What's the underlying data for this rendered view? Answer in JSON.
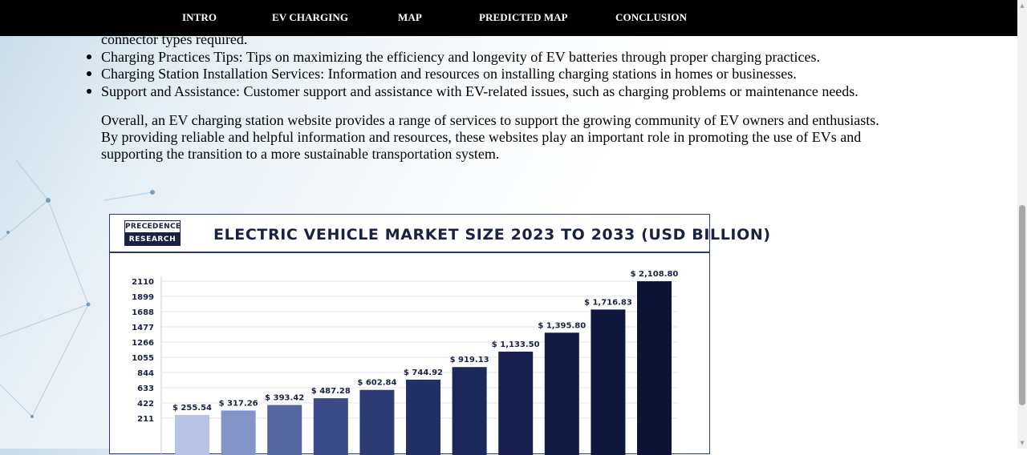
{
  "nav": {
    "items": [
      "INTRO",
      "EV CHARGING",
      "MAP",
      "PREDICTED MAP",
      "CONCLUSION"
    ]
  },
  "content": {
    "partial_line": "connector types required.",
    "bullets": [
      "Charging Practices Tips: Tips on maximizing the efficiency and longevity of EV batteries through proper charging practices.",
      "Charging Station Installation Services: Information and resources on installing charging stations in homes or businesses.",
      "Support and Assistance: Customer support and assistance with EV-related issues, such as charging problems or maintenance needs."
    ],
    "paragraph_lines": [
      "Overall, an EV charging station website provides a range of services to support the growing community of EV owners and enthusiasts.",
      "By providing reliable and helpful information and resources, these websites play an important role in promoting the use of EVs and",
      "supporting the transition to a more sustainable transportation system."
    ]
  },
  "chart_data": {
    "type": "bar",
    "title": "ELECTRIC VEHICLE MARKET SIZE 2023 TO 2033 (USD BILLION)",
    "logo_text": [
      "PRECEDENCE",
      "RESEARCH"
    ],
    "y_ticks": [
      211,
      422,
      633,
      844,
      1055,
      1266,
      1477,
      1688,
      1899,
      2110
    ],
    "values": [
      255.54,
      317.26,
      393.42,
      487.28,
      602.84,
      744.92,
      919.13,
      1133.5,
      1395.8,
      1716.83,
      2108.8
    ],
    "value_labels": [
      "$ 255.54",
      "$ 317.26",
      "$ 393.42",
      "$ 487.28",
      "$ 602.84",
      "$ 744.92",
      "$ 919.13",
      "$ 1,133.50",
      "$ 1,395.80",
      "$ 1,716.83",
      "$ 2,108.80"
    ],
    "colors": [
      "#b8c3e6",
      "#8494c9",
      "#55659e",
      "#3a4a87",
      "#2d3b75",
      "#233066",
      "#1c275a",
      "#17204f",
      "#131b45",
      "#10173c",
      "#0d1334"
    ],
    "grid": true
  }
}
